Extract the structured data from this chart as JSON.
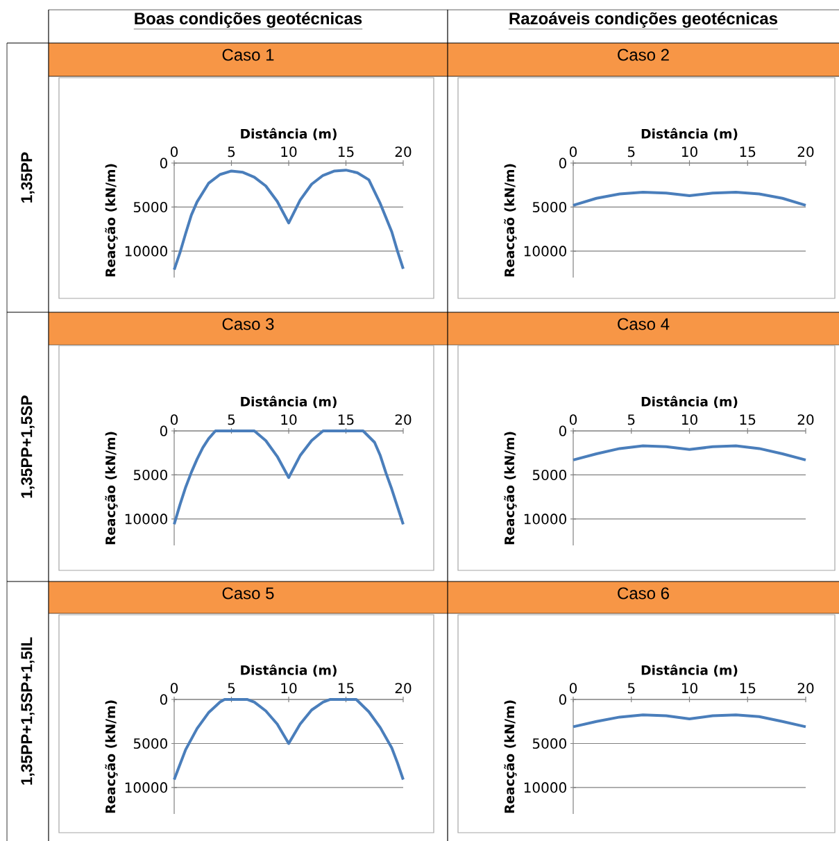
{
  "chart_data": [
    {
      "type": "line",
      "title": "Caso 1",
      "xlabel": "Distância (m)",
      "ylabel": "Reacção (kN/m)",
      "annotations": [
        "Boas condições geotécnicas",
        "1,35PP"
      ],
      "xlim": [
        0,
        20
      ],
      "ylim": [
        13000,
        0
      ],
      "xticks": [
        0,
        5,
        10,
        15,
        20
      ],
      "yticks": [
        0,
        5000,
        10000
      ],
      "grid": "y",
      "color": "#4a7ebb",
      "x": [
        0,
        0.5,
        1,
        1.5,
        2,
        3,
        4,
        5,
        6,
        7,
        8,
        9,
        10,
        11,
        12,
        13,
        14,
        15,
        16,
        17,
        18,
        18.5,
        19,
        19.5,
        20
      ],
      "values": [
        12100,
        10200,
        8000,
        5900,
        4400,
        2300,
        1300,
        900,
        1050,
        1600,
        2600,
        4350,
        6800,
        4200,
        2400,
        1400,
        900,
        800,
        1100,
        1900,
        4600,
        6200,
        7800,
        10000,
        12000
      ]
    },
    {
      "type": "line",
      "title": "Caso 2",
      "xlabel": "Distância (m)",
      "ylabel": "Reacçaõ (kN/m)",
      "annotations": [
        "Razoáveis condições geotécnicas"
      ],
      "xlim": [
        0,
        20
      ],
      "ylim": [
        13000,
        0
      ],
      "xticks": [
        0,
        5,
        10,
        15,
        20
      ],
      "yticks": [
        0,
        5000,
        10000
      ],
      "grid": "y",
      "color": "#4a7ebb",
      "x": [
        0,
        2,
        4,
        6,
        8,
        10,
        12,
        14,
        16,
        18,
        20
      ],
      "values": [
        4800,
        4000,
        3500,
        3300,
        3400,
        3700,
        3400,
        3300,
        3500,
        4000,
        4800
      ]
    },
    {
      "type": "line",
      "title": "Caso 3",
      "xlabel": "Distância (m)",
      "ylabel": "Reacção (kN/m)",
      "annotations": [
        "1,35PP+1,5SP"
      ],
      "xlim": [
        0,
        20
      ],
      "ylim": [
        13000,
        0
      ],
      "xticks": [
        0,
        5,
        10,
        15,
        20
      ],
      "yticks": [
        0,
        5000,
        10000
      ],
      "grid": "y",
      "color": "#4a7ebb",
      "x": [
        0,
        0.5,
        1,
        1.5,
        2,
        2.5,
        3,
        3.6,
        7,
        8,
        9,
        10,
        11,
        12,
        13,
        16.5,
        17.5,
        18,
        18.5,
        19,
        19.5,
        20
      ],
      "values": [
        10600,
        8400,
        6400,
        4700,
        3200,
        1900,
        900,
        0,
        0,
        1100,
        2900,
        5300,
        2800,
        1100,
        0,
        0,
        1300,
        2800,
        4800,
        6600,
        8600,
        10600
      ]
    },
    {
      "type": "line",
      "title": "Caso 4",
      "xlabel": "Distância (m)",
      "ylabel": "Reacção (kN/m)",
      "xlim": [
        0,
        20
      ],
      "ylim": [
        13000,
        0
      ],
      "xticks": [
        0,
        5,
        10,
        15,
        20
      ],
      "yticks": [
        0,
        5000,
        10000
      ],
      "grid": "y",
      "color": "#4a7ebb",
      "x": [
        0,
        2,
        4,
        6,
        8,
        10,
        12,
        14,
        16,
        18,
        20
      ],
      "values": [
        3300,
        2600,
        2000,
        1700,
        1800,
        2100,
        1800,
        1700,
        2000,
        2600,
        3300
      ]
    },
    {
      "type": "line",
      "title": "Caso 5",
      "xlabel": "Distância (m)",
      "ylabel": "Reacção (kN/m)",
      "annotations": [
        "1,35PP+1,5SP+1,5IL"
      ],
      "xlim": [
        0,
        20
      ],
      "ylim": [
        13000,
        0
      ],
      "xticks": [
        0,
        5,
        10,
        15,
        20
      ],
      "yticks": [
        0,
        5000,
        10000
      ],
      "grid": "y",
      "color": "#4a7ebb",
      "x": [
        0,
        0.5,
        1,
        2,
        3,
        4,
        4.4,
        6.4,
        7,
        8,
        9,
        10,
        11,
        12,
        13,
        13.6,
        15.9,
        17,
        18,
        19,
        19.5,
        20
      ],
      "values": [
        9100,
        7400,
        5700,
        3300,
        1500,
        300,
        0,
        0,
        300,
        1300,
        2800,
        5000,
        2800,
        1200,
        300,
        0,
        0,
        1400,
        3200,
        5500,
        7200,
        9100
      ]
    },
    {
      "type": "line",
      "title": "Caso 6",
      "xlabel": "Distância (m)",
      "ylabel": "Reacção (kN/m)",
      "xlim": [
        0,
        20
      ],
      "ylim": [
        13000,
        0
      ],
      "xticks": [
        0,
        5,
        10,
        15,
        20
      ],
      "yticks": [
        0,
        5000,
        10000
      ],
      "grid": "y",
      "color": "#4a7ebb",
      "x": [
        0,
        2,
        4,
        6,
        8,
        10,
        12,
        14,
        16,
        18,
        20
      ],
      "values": [
        3100,
        2500,
        2000,
        1750,
        1850,
        2200,
        1850,
        1750,
        1950,
        2500,
        3100
      ]
    }
  ]
}
